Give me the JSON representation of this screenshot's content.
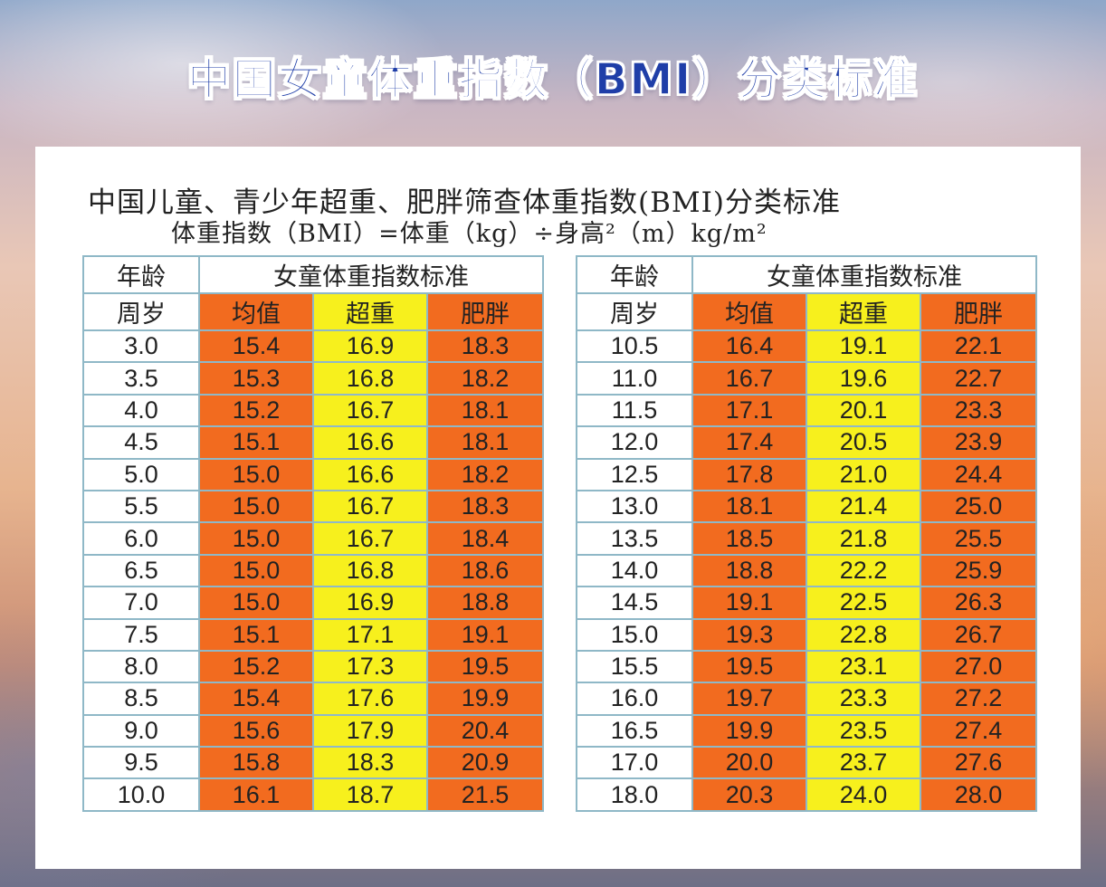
{
  "main_title": "中国女童体重指数（BMI）分类标准",
  "doc_title": "中国儿童、青少年超重、肥胖筛查体重指数(BMI)分类标准",
  "formula": "体重指数（BMI）=体重（kg）÷身高²（m）kg/m²",
  "headers": {
    "age_top": "年龄",
    "age_bottom": "周岁",
    "standard": "女童体重指数标准",
    "avg": "均值",
    "over": "超重",
    "obese": "肥胖"
  },
  "left_rows": [
    {
      "age": "3.0",
      "avg": "15.4",
      "over": "16.9",
      "obese": "18.3"
    },
    {
      "age": "3.5",
      "avg": "15.3",
      "over": "16.8",
      "obese": "18.2"
    },
    {
      "age": "4.0",
      "avg": "15.2",
      "over": "16.7",
      "obese": "18.1"
    },
    {
      "age": "4.5",
      "avg": "15.1",
      "over": "16.6",
      "obese": "18.1"
    },
    {
      "age": "5.0",
      "avg": "15.0",
      "over": "16.6",
      "obese": "18.2"
    },
    {
      "age": "5.5",
      "avg": "15.0",
      "over": "16.7",
      "obese": "18.3"
    },
    {
      "age": "6.0",
      "avg": "15.0",
      "over": "16.7",
      "obese": "18.4"
    },
    {
      "age": "6.5",
      "avg": "15.0",
      "over": "16.8",
      "obese": "18.6"
    },
    {
      "age": "7.0",
      "avg": "15.0",
      "over": "16.9",
      "obese": "18.8"
    },
    {
      "age": "7.5",
      "avg": "15.1",
      "over": "17.1",
      "obese": "19.1"
    },
    {
      "age": "8.0",
      "avg": "15.2",
      "over": "17.3",
      "obese": "19.5"
    },
    {
      "age": "8.5",
      "avg": "15.4",
      "over": "17.6",
      "obese": "19.9"
    },
    {
      "age": "9.0",
      "avg": "15.6",
      "over": "17.9",
      "obese": "20.4"
    },
    {
      "age": "9.5",
      "avg": "15.8",
      "over": "18.3",
      "obese": "20.9"
    },
    {
      "age": "10.0",
      "avg": "16.1",
      "over": "18.7",
      "obese": "21.5"
    }
  ],
  "right_rows": [
    {
      "age": "10.5",
      "avg": "16.4",
      "over": "19.1",
      "obese": "22.1"
    },
    {
      "age": "11.0",
      "avg": "16.7",
      "over": "19.6",
      "obese": "22.7"
    },
    {
      "age": "11.5",
      "avg": "17.1",
      "over": "20.1",
      "obese": "23.3"
    },
    {
      "age": "12.0",
      "avg": "17.4",
      "over": "20.5",
      "obese": "23.9"
    },
    {
      "age": "12.5",
      "avg": "17.8",
      "over": "21.0",
      "obese": "24.4"
    },
    {
      "age": "13.0",
      "avg": "18.1",
      "over": "21.4",
      "obese": "25.0"
    },
    {
      "age": "13.5",
      "avg": "18.5",
      "over": "21.8",
      "obese": "25.5"
    },
    {
      "age": "14.0",
      "avg": "18.8",
      "over": "22.2",
      "obese": "25.9"
    },
    {
      "age": "14.5",
      "avg": "19.1",
      "over": "22.5",
      "obese": "26.3"
    },
    {
      "age": "15.0",
      "avg": "19.3",
      "over": "22.8",
      "obese": "26.7"
    },
    {
      "age": "15.5",
      "avg": "19.5",
      "over": "23.1",
      "obese": "27.0"
    },
    {
      "age": "16.0",
      "avg": "19.7",
      "over": "23.3",
      "obese": "27.2"
    },
    {
      "age": "16.5",
      "avg": "19.9",
      "over": "23.5",
      "obese": "27.4"
    },
    {
      "age": "17.0",
      "avg": "20.0",
      "over": "23.7",
      "obese": "27.6"
    },
    {
      "age": "18.0",
      "avg": "20.3",
      "over": "24.0",
      "obese": "28.0"
    }
  ],
  "colors": {
    "avg_cell": "#f26b1f",
    "over_cell": "#f7f01d",
    "obese_cell": "#f26b1f",
    "border": "#8fb8c7",
    "title_text": "#1f3ea8"
  }
}
